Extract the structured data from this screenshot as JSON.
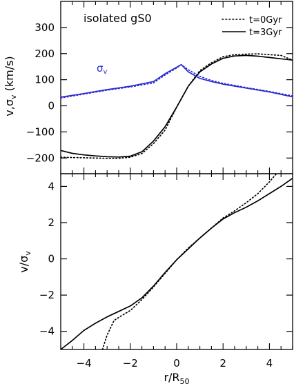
{
  "chart_data": [
    {
      "type": "line",
      "annotation": "isolated gS0",
      "ylabel": "v,σ_v (km/s)",
      "ylabel_main": "v,σ",
      "ylabel_sub": "v",
      "ylabel_tail": " (km/s)",
      "sigma_label": "σ",
      "sigma_sub": "v",
      "xlim": [
        -5,
        5
      ],
      "ylim": [
        -260,
        400
      ],
      "yticks": [
        -200,
        -100,
        0,
        100,
        200,
        300
      ],
      "ytick_labels": [
        "−200",
        "−100",
        "0",
        "100",
        "200",
        "300"
      ],
      "legend": {
        "placement": "top-right",
        "entries": [
          {
            "label": "t=0Gyr",
            "style": "dotted"
          },
          {
            "label": "t=3Gyr",
            "style": "solid"
          }
        ]
      },
      "series": [
        {
          "name": "t=0Gyr",
          "quantity": "v",
          "style": "dotted",
          "color": "#000000",
          "x": [
            -5.0,
            -4.0,
            -3.0,
            -2.5,
            -2.0,
            -1.5,
            -1.0,
            -0.5,
            0.0,
            0.5,
            1.0,
            1.5,
            2.0,
            2.5,
            3.0,
            3.5,
            4.0,
            4.5,
            5.0
          ],
          "y": [
            -197,
            -199,
            -201,
            -201,
            -197,
            -183,
            -145,
            -93,
            -5,
            75,
            135,
            165,
            188,
            196,
            198,
            199,
            196,
            193,
            175
          ]
        },
        {
          "name": "t=3Gyr",
          "quantity": "v",
          "style": "solid",
          "color": "#000000",
          "x": [
            -5.0,
            -4.5,
            -4.0,
            -3.5,
            -3.0,
            -2.5,
            -2.0,
            -1.5,
            -1.0,
            -0.5,
            0.0,
            0.5,
            1.0,
            1.5,
            2.0,
            2.5,
            3.0,
            3.5,
            4.0,
            4.5,
            5.0
          ],
          "y": [
            -171,
            -182,
            -188,
            -192,
            -195,
            -196,
            -193,
            -176,
            -135,
            -80,
            -5,
            75,
            130,
            160,
            182,
            191,
            193,
            190,
            185,
            180,
            175
          ]
        },
        {
          "name": "t=0Gyr",
          "quantity": "sigma_v",
          "style": "dotted",
          "color": "#2a2ad0",
          "x": [
            -5.0,
            -4.0,
            -3.0,
            -2.0,
            -1.0,
            -0.5,
            0.0,
            0.2,
            0.5,
            1.0,
            1.5,
            2.0,
            3.0,
            4.0,
            5.0
          ],
          "y": [
            30,
            45,
            60,
            72,
            88,
            118,
            145,
            158,
            138,
            113,
            97,
            86,
            70,
            55,
            38
          ]
        },
        {
          "name": "t=3Gyr",
          "quantity": "sigma_v",
          "style": "solid",
          "color": "#2a2ad0",
          "x": [
            -5.0,
            -4.0,
            -3.0,
            -2.0,
            -1.0,
            -0.5,
            0.0,
            0.2,
            0.5,
            1.0,
            1.5,
            2.0,
            3.0,
            4.0,
            5.0
          ],
          "y": [
            33,
            47,
            62,
            75,
            93,
            123,
            148,
            158,
            130,
            105,
            93,
            83,
            68,
            53,
            34
          ]
        }
      ]
    },
    {
      "type": "line",
      "xlabel": "r/R_50",
      "xlabel_main": "r/R",
      "xlabel_sub": "50",
      "ylabel": "v/σ_v",
      "ylabel_main": "v/σ",
      "ylabel_sub": "v",
      "xlim": [
        -5,
        5
      ],
      "ylim": [
        -5,
        4.7
      ],
      "xticks": [
        -4,
        -2,
        0,
        2,
        4
      ],
      "xtick_labels": [
        "−4",
        "−2",
        "0",
        "2",
        "4"
      ],
      "yticks": [
        -4,
        -2,
        0,
        2,
        4
      ],
      "ytick_labels": [
        "−4",
        "−2",
        "0",
        "2",
        "4"
      ],
      "series": [
        {
          "name": "t=0Gyr",
          "style": "dotted",
          "color": "#000000",
          "x": [
            -3.2,
            -3.0,
            -2.7,
            -2.4,
            -2.0,
            -1.5,
            -1.0,
            -0.5,
            0.0,
            0.5,
            1.0,
            1.5,
            2.0,
            2.5,
            3.0,
            3.5,
            4.0,
            4.3
          ],
          "y": [
            -5.0,
            -4.2,
            -3.4,
            -3.15,
            -2.85,
            -2.25,
            -1.55,
            -0.8,
            -0.05,
            0.6,
            1.15,
            1.7,
            2.25,
            2.65,
            3.1,
            3.6,
            4.25,
            4.7
          ]
        },
        {
          "name": "t=3Gyr",
          "style": "solid",
          "color": "#000000",
          "x": [
            -5.0,
            -4.5,
            -4.0,
            -3.5,
            -3.0,
            -2.5,
            -2.0,
            -1.5,
            -1.0,
            -0.5,
            0.0,
            0.5,
            1.0,
            1.5,
            2.0,
            2.5,
            3.0,
            3.5,
            4.0,
            4.5,
            5.0
          ],
          "y": [
            -5.0,
            -4.5,
            -3.95,
            -3.55,
            -3.2,
            -2.9,
            -2.6,
            -2.15,
            -1.5,
            -0.75,
            -0.05,
            0.55,
            1.15,
            1.7,
            2.2,
            2.55,
            2.85,
            3.2,
            3.6,
            4.0,
            4.45
          ]
        }
      ]
    }
  ]
}
